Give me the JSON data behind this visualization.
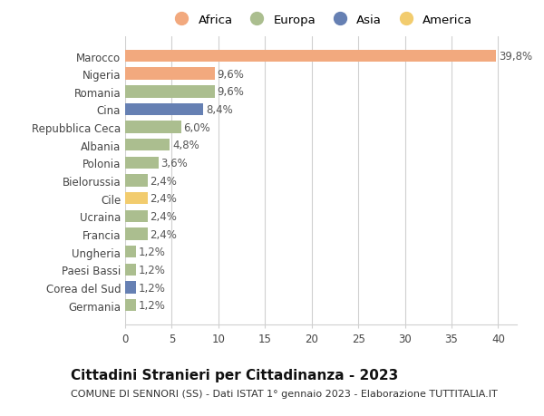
{
  "countries": [
    "Marocco",
    "Nigeria",
    "Romania",
    "Cina",
    "Repubblica Ceca",
    "Albania",
    "Polonia",
    "Bielorussia",
    "Cile",
    "Ucraina",
    "Francia",
    "Ungheria",
    "Paesi Bassi",
    "Corea del Sud",
    "Germania"
  ],
  "values": [
    39.8,
    9.6,
    9.6,
    8.4,
    6.0,
    4.8,
    3.6,
    2.4,
    2.4,
    2.4,
    2.4,
    1.2,
    1.2,
    1.2,
    1.2
  ],
  "labels": [
    "39,8%",
    "9,6%",
    "9,6%",
    "8,4%",
    "6,0%",
    "4,8%",
    "3,6%",
    "2,4%",
    "2,4%",
    "2,4%",
    "2,4%",
    "1,2%",
    "1,2%",
    "1,2%",
    "1,2%"
  ],
  "continent": [
    "Africa",
    "Africa",
    "Europa",
    "Asia",
    "Europa",
    "Europa",
    "Europa",
    "Europa",
    "America",
    "Europa",
    "Europa",
    "Europa",
    "Europa",
    "Asia",
    "Europa"
  ],
  "colors": {
    "Africa": "#F2A97E",
    "Europa": "#ABBE8F",
    "Asia": "#6680B3",
    "America": "#F2CC6E"
  },
  "xlim": [
    0,
    42
  ],
  "xticks": [
    0,
    5,
    10,
    15,
    20,
    25,
    30,
    35,
    40
  ],
  "title": "Cittadini Stranieri per Cittadinanza - 2023",
  "subtitle": "COMUNE DI SENNORI (SS) - Dati ISTAT 1° gennaio 2023 - Elaborazione TUTTITALIA.IT",
  "background_color": "#ffffff",
  "grid_color": "#d0d0d0",
  "bar_height": 0.68,
  "label_fontsize": 8.5,
  "title_fontsize": 11,
  "subtitle_fontsize": 8,
  "tick_fontsize": 8.5,
  "legend_fontsize": 9.5,
  "legend_order": [
    "Africa",
    "Europa",
    "Asia",
    "America"
  ]
}
